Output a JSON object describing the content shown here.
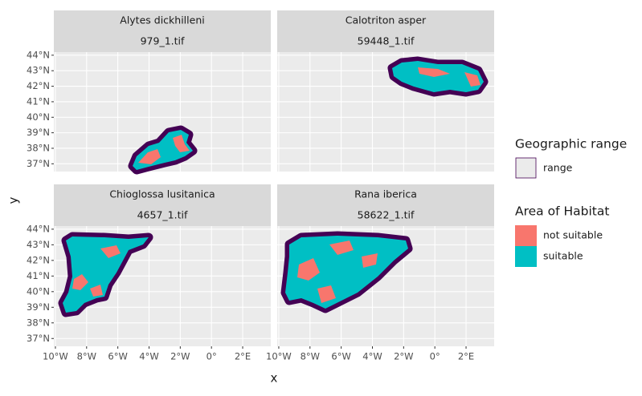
{
  "chart_data": {
    "type": "map",
    "x_label": "x",
    "y_label": "y",
    "panels": [
      {
        "title": "Alytes dickhilleni",
        "subtitle": "979_1.tif"
      },
      {
        "title": "Calotriton asper",
        "subtitle": "59448_1.tif"
      },
      {
        "title": "Chioglossa lusitanica",
        "subtitle": "4657_1.tif"
      },
      {
        "title": "Rana iberica",
        "subtitle": "58622_1.tif"
      }
    ],
    "xlim": [
      -10.1,
      3.8
    ],
    "ylim": [
      36.5,
      44.2
    ],
    "xticks": [
      {
        "value": -10,
        "label": "10°W"
      },
      {
        "value": -8,
        "label": "8°W"
      },
      {
        "value": -6,
        "label": "6°W"
      },
      {
        "value": -4,
        "label": "4°W"
      },
      {
        "value": -2,
        "label": "2°W"
      },
      {
        "value": 0,
        "label": "0°"
      },
      {
        "value": 2,
        "label": "2°E"
      }
    ],
    "yticks": [
      {
        "value": 37,
        "label": "37°N"
      },
      {
        "value": 38,
        "label": "38°N"
      },
      {
        "value": 39,
        "label": "39°N"
      },
      {
        "value": 40,
        "label": "40°N"
      },
      {
        "value": 41,
        "label": "41°N"
      },
      {
        "value": 42,
        "label": "42°N"
      },
      {
        "value": 43,
        "label": "43°N"
      },
      {
        "value": 44,
        "label": "44°N"
      }
    ],
    "grid": true,
    "legend": {
      "range_title": "Geographic range",
      "range_items": [
        {
          "name": "range",
          "color": "#440154"
        }
      ],
      "habitat_title": "Area of Habitat",
      "habitat_items": [
        {
          "name": "not suitable",
          "color": "#F8766D"
        },
        {
          "name": "suitable",
          "color": "#00BFC4"
        }
      ]
    }
  }
}
